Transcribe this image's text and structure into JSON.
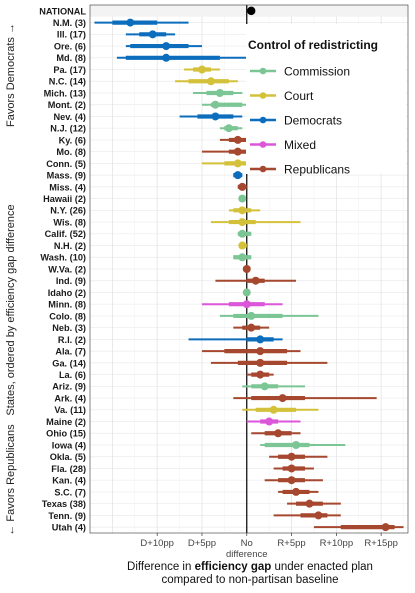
{
  "chart_data": {
    "type": "scatter",
    "subtype": "point-range dot plot with interval bars",
    "title": "",
    "ylabel": "States, ordered by efficiency gap difference",
    "ylabel_top": "Favors Democrats →",
    "ylabel_bottom": "← Favors Republicans",
    "xlabel_line1_prefix": "Difference in ",
    "xlabel_line1_bold": "efficiency gap",
    "xlabel_line1_suffix": " under enacted plan",
    "xlabel_line2": "compared to non-partisan baseline",
    "xlim": [
      -17.5,
      18
    ],
    "x_ticks": [
      {
        "value": -10,
        "label": "D+10pp"
      },
      {
        "value": -5,
        "label": "D+5pp"
      },
      {
        "value": 0,
        "label": "No"
      },
      {
        "value": 5,
        "label": "R+5pp"
      },
      {
        "value": 10,
        "label": "R+10pp"
      },
      {
        "value": 15,
        "label": "R+15pp"
      }
    ],
    "zero_tick_sublabel": "difference",
    "grid": true,
    "legend": {
      "title": "Control of redistricting",
      "placement": "top-right",
      "entries": [
        {
          "label": "Commission",
          "color": "#7cc594"
        },
        {
          "label": "Court",
          "color": "#d4c13a"
        },
        {
          "label": "Democrats",
          "color": "#0b6dbb"
        },
        {
          "label": "Mixed",
          "color": "#dc56d9"
        },
        {
          "label": "Republicans",
          "color": "#a6472f"
        }
      ]
    },
    "colors": {
      "Commission": "#7cc594",
      "Court": "#d4c13a",
      "Democrats": "#0b6dbb",
      "Mixed": "#dc56d9",
      "Republicans": "#a6472f",
      "National": "#000000"
    },
    "states": [
      {
        "label": "NATIONAL",
        "group": "National",
        "value": 0.5,
        "inner": [
          0.5,
          0.5
        ],
        "outer": [
          0.5,
          0.5
        ],
        "bold_highlight": true
      },
      {
        "label": "N.M. (3)",
        "group": "Democrats",
        "value": -13,
        "inner": [
          -15,
          -10
        ],
        "outer": [
          -17,
          -6.5
        ]
      },
      {
        "label": "Ill. (17)",
        "group": "Democrats",
        "value": -10.5,
        "inner": [
          -12,
          -9
        ],
        "outer": [
          -13.5,
          -8
        ]
      },
      {
        "label": "Ore. (6)",
        "group": "Democrats",
        "value": -9,
        "inner": [
          -13,
          -6.5
        ],
        "outer": [
          -13.5,
          -5
        ]
      },
      {
        "label": "Md. (8)",
        "group": "Democrats",
        "value": -9,
        "inner": [
          -13.5,
          -3
        ],
        "outer": [
          -14.5,
          2
        ]
      },
      {
        "label": "Pa. (17)",
        "group": "Court",
        "value": -5,
        "inner": [
          -6,
          -4
        ],
        "outer": [
          -7,
          -3
        ]
      },
      {
        "label": "N.C. (14)",
        "group": "Court",
        "value": -4,
        "inner": [
          -6.5,
          -2
        ],
        "outer": [
          -8,
          -1
        ]
      },
      {
        "label": "Mich. (13)",
        "group": "Commission",
        "value": -3,
        "inner": [
          -4.5,
          -1.5
        ],
        "outer": [
          -6,
          -0.5
        ]
      },
      {
        "label": "Mont. (2)",
        "group": "Commission",
        "value": -3.5,
        "inner": [
          -4,
          -0.5
        ],
        "outer": [
          -5,
          1.5
        ]
      },
      {
        "label": "Nev. (4)",
        "group": "Democrats",
        "value": -3.5,
        "inner": [
          -5.5,
          -1.5
        ],
        "outer": [
          -7.5,
          -0.5
        ]
      },
      {
        "label": "N.J. (12)",
        "group": "Commission",
        "value": -2,
        "inner": [
          -2.5,
          -1
        ],
        "outer": [
          -3,
          -0.5
        ]
      },
      {
        "label": "Ky. (6)",
        "group": "Republicans",
        "value": -1,
        "inner": [
          -2,
          0
        ],
        "outer": [
          -3,
          0.5
        ]
      },
      {
        "label": "Mo. (8)",
        "group": "Republicans",
        "value": -1,
        "inner": [
          -2,
          0
        ],
        "outer": [
          -5,
          1
        ]
      },
      {
        "label": "Conn. (5)",
        "group": "Court",
        "value": -1,
        "inner": [
          -2.5,
          0.5
        ],
        "outer": [
          -5,
          2
        ]
      },
      {
        "label": "Mass. (9)",
        "group": "Democrats",
        "value": -1,
        "inner": [
          -1.5,
          -0.5
        ],
        "outer": [
          -1.5,
          -0.5
        ]
      },
      {
        "label": "Miss. (4)",
        "group": "Republicans",
        "value": -0.5,
        "inner": [
          -1,
          0
        ],
        "outer": [
          -1,
          0
        ]
      },
      {
        "label": "Hawaii (2)",
        "group": "Commission",
        "value": -0.5,
        "inner": [
          -0.5,
          -0.5
        ],
        "outer": [
          -0.5,
          -0.5
        ]
      },
      {
        "label": "N.Y. (26)",
        "group": "Court",
        "value": -0.5,
        "inner": [
          -1.5,
          0.5
        ],
        "outer": [
          -2,
          1.5
        ]
      },
      {
        "label": "Wis. (8)",
        "group": "Court",
        "value": -0.5,
        "inner": [
          -2,
          1
        ],
        "outer": [
          -4,
          6
        ]
      },
      {
        "label": "Calif. (52)",
        "group": "Commission",
        "value": -0.5,
        "inner": [
          -1,
          0.5
        ],
        "outer": [
          -1,
          0.5
        ]
      },
      {
        "label": "N.H. (2)",
        "group": "Court",
        "value": -0.5,
        "inner": [
          -0.5,
          0
        ],
        "outer": [
          -0.5,
          0
        ]
      },
      {
        "label": "Wash. (10)",
        "group": "Commission",
        "value": -0.5,
        "inner": [
          -1.5,
          0.5
        ],
        "outer": [
          -1.5,
          0.5
        ]
      },
      {
        "label": "W.Va. (2)",
        "group": "Republicans",
        "value": 0,
        "inner": [
          0,
          0
        ],
        "outer": [
          0,
          0
        ]
      },
      {
        "label": "Ind. (9)",
        "group": "Republicans",
        "value": 1,
        "inner": [
          0,
          2
        ],
        "outer": [
          -3.5,
          5.5
        ]
      },
      {
        "label": "Idaho (2)",
        "group": "Commission",
        "value": 0,
        "inner": [
          0,
          0
        ],
        "outer": [
          0,
          0
        ]
      },
      {
        "label": "Minn. (8)",
        "group": "Mixed",
        "value": 0,
        "inner": [
          -2,
          2
        ],
        "outer": [
          -5,
          4
        ]
      },
      {
        "label": "Colo. (8)",
        "group": "Commission",
        "value": 0.5,
        "inner": [
          -1.5,
          4
        ],
        "outer": [
          -3,
          8
        ]
      },
      {
        "label": "Neb. (3)",
        "group": "Republicans",
        "value": 0.5,
        "inner": [
          -0.5,
          1.5
        ],
        "outer": [
          -1.5,
          2.5
        ]
      },
      {
        "label": "R.I. (2)",
        "group": "Democrats",
        "value": 1.5,
        "inner": [
          0,
          3
        ],
        "outer": [
          -6.5,
          4
        ]
      },
      {
        "label": "Ala. (7)",
        "group": "Republicans",
        "value": 1.5,
        "inner": [
          -2.5,
          4.5
        ],
        "outer": [
          -5,
          6
        ]
      },
      {
        "label": "Ga. (14)",
        "group": "Republicans",
        "value": 1.5,
        "inner": [
          -1,
          4.5
        ],
        "outer": [
          -4,
          9
        ]
      },
      {
        "label": "La. (6)",
        "group": "Republicans",
        "value": 1.5,
        "inner": [
          0.5,
          2.5
        ],
        "outer": [
          0,
          3
        ]
      },
      {
        "label": "Ariz. (9)",
        "group": "Commission",
        "value": 2,
        "inner": [
          0.5,
          3.5
        ],
        "outer": [
          -0.5,
          6.5
        ]
      },
      {
        "label": "Ark. (4)",
        "group": "Republicans",
        "value": 4,
        "inner": [
          0.5,
          6.5
        ],
        "outer": [
          -1.5,
          14.5
        ]
      },
      {
        "label": "Va. (11)",
        "group": "Court",
        "value": 3,
        "inner": [
          1,
          5.5
        ],
        "outer": [
          -0.5,
          8
        ]
      },
      {
        "label": "Maine (2)",
        "group": "Mixed",
        "value": 2.5,
        "inner": [
          1.5,
          3.5
        ],
        "outer": [
          0,
          6
        ]
      },
      {
        "label": "Ohio (15)",
        "group": "Republicans",
        "value": 3.5,
        "inner": [
          2,
          5
        ],
        "outer": [
          0.5,
          6
        ]
      },
      {
        "label": "Iowa (4)",
        "group": "Commission",
        "value": 5.5,
        "inner": [
          2,
          7
        ],
        "outer": [
          1.5,
          11
        ]
      },
      {
        "label": "Okla. (5)",
        "group": "Republicans",
        "value": 5,
        "inner": [
          3.5,
          6.5
        ],
        "outer": [
          2.5,
          9
        ]
      },
      {
        "label": "Fla. (28)",
        "group": "Republicans",
        "value": 5,
        "inner": [
          4,
          6.5
        ],
        "outer": [
          3,
          7.5
        ]
      },
      {
        "label": "Kan. (4)",
        "group": "Republicans",
        "value": 5,
        "inner": [
          3.5,
          6.5
        ],
        "outer": [
          2,
          8.5
        ]
      },
      {
        "label": "S.C. (7)",
        "group": "Republicans",
        "value": 5.5,
        "inner": [
          4,
          7
        ],
        "outer": [
          3.5,
          8
        ]
      },
      {
        "label": "Texas (38)",
        "group": "Republicans",
        "value": 7,
        "inner": [
          5.5,
          8.5
        ],
        "outer": [
          4.5,
          10.5
        ]
      },
      {
        "label": "Tenn. (9)",
        "group": "Republicans",
        "value": 8,
        "inner": [
          6,
          9
        ],
        "outer": [
          3,
          10.5
        ]
      },
      {
        "label": "Utah (4)",
        "group": "Republicans",
        "value": 15.5,
        "inner": [
          10.5,
          16.5
        ],
        "outer": [
          7.5,
          17.5
        ]
      }
    ]
  }
}
